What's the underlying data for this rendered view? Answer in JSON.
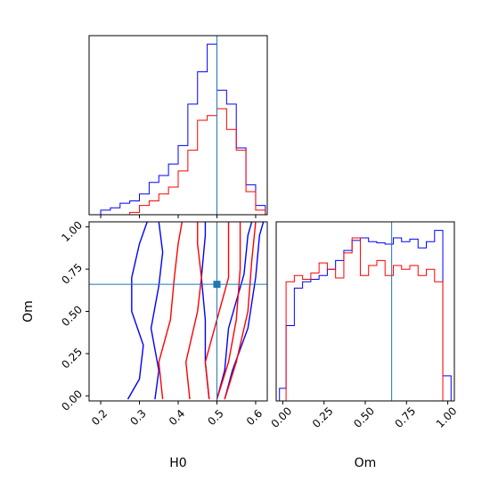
{
  "chart_data": {
    "type": "corner",
    "parameters": [
      "H0",
      "Om"
    ],
    "truth": {
      "H0": 0.5,
      "Om": 0.66
    },
    "colors": {
      "series_blue": "#0000ff",
      "series_red": "#ff0000",
      "truth": "#1f77b4"
    },
    "panels": [
      {
        "id": "hist-H0",
        "type": "histogram",
        "xlim": [
          0.17,
          0.63
        ],
        "xticks": [
          0.2,
          0.3,
          0.4,
          0.5,
          0.6
        ],
        "tick_labels_shown": false,
        "series": [
          {
            "color": "blue",
            "edges": [
              0.2,
              0.225,
              0.25,
              0.275,
              0.3,
              0.325,
              0.35,
              0.375,
              0.4,
              0.425,
              0.45,
              0.475,
              0.5,
              0.525,
              0.55,
              0.575,
              0.6,
              0.625
            ],
            "density": [
              0.2,
              0.3,
              0.5,
              0.6,
              0.9,
              1.4,
              1.7,
              2.2,
              3.0,
              4.8,
              6.2,
              7.4,
              5.4,
              4.8,
              2.9,
              1.3,
              0.4
            ]
          },
          {
            "color": "red",
            "edges": [
              0.275,
              0.3,
              0.325,
              0.35,
              0.375,
              0.4,
              0.425,
              0.45,
              0.475,
              0.5,
              0.525,
              0.55,
              0.575,
              0.6,
              0.625
            ],
            "density": [
              0.1,
              0.4,
              0.6,
              0.9,
              1.2,
              1.9,
              2.8,
              4.1,
              4.3,
              4.6,
              3.7,
              2.8,
              1.0,
              0.2
            ]
          }
        ]
      },
      {
        "id": "contour-H0-Om",
        "type": "contour2d",
        "xlim": [
          0.17,
          0.63
        ],
        "ylim": [
          -0.03,
          1.03
        ],
        "xticks": [
          0.2,
          0.3,
          0.4,
          0.5,
          0.6
        ],
        "yticks": [
          0.0,
          0.25,
          0.5,
          0.75,
          1.0
        ],
        "xtick_labels": [
          "0.2",
          "0.3",
          "0.4",
          "0.5",
          "0.6"
        ],
        "ytick_labels": [
          "0.00",
          "0.25",
          "0.50",
          "0.75",
          "1.00"
        ],
        "xlabel": "H0",
        "ylabel": "Om",
        "contours": [
          {
            "color": "blue",
            "points": [
              [
                0.27,
                -0.02
              ],
              [
                0.3,
                0.1
              ],
              [
                0.31,
                0.3
              ],
              [
                0.28,
                0.5
              ],
              [
                0.28,
                0.7
              ],
              [
                0.3,
                0.9
              ],
              [
                0.32,
                1.03
              ]
            ]
          },
          {
            "color": "blue",
            "points": [
              [
                0.34,
                -0.02
              ],
              [
                0.35,
                0.15
              ],
              [
                0.33,
                0.4
              ],
              [
                0.35,
                0.65
              ],
              [
                0.36,
                0.85
              ],
              [
                0.35,
                1.03
              ]
            ]
          },
          {
            "color": "blue",
            "points": [
              [
                0.48,
                -0.02
              ],
              [
                0.47,
                0.2
              ],
              [
                0.47,
                0.45
              ],
              [
                0.46,
                0.7
              ],
              [
                0.47,
                0.95
              ],
              [
                0.47,
                1.03
              ]
            ]
          },
          {
            "color": "blue",
            "points": [
              [
                0.5,
                -0.02
              ],
              [
                0.52,
                0.15
              ],
              [
                0.53,
                0.4
              ],
              [
                0.57,
                0.72
              ],
              [
                0.58,
                0.95
              ],
              [
                0.59,
                1.03
              ]
            ]
          },
          {
            "color": "blue",
            "points": [
              [
                0.52,
                -0.02
              ],
              [
                0.54,
                0.15
              ],
              [
                0.58,
                0.4
              ],
              [
                0.6,
                0.7
              ],
              [
                0.61,
                0.95
              ],
              [
                0.62,
                1.03
              ]
            ]
          },
          {
            "color": "red",
            "points": [
              [
                0.36,
                -0.02
              ],
              [
                0.35,
                0.2
              ],
              [
                0.38,
                0.45
              ],
              [
                0.39,
                0.7
              ],
              [
                0.4,
                0.9
              ],
              [
                0.41,
                1.03
              ]
            ]
          },
          {
            "color": "red",
            "points": [
              [
                0.43,
                -0.02
              ],
              [
                0.42,
                0.2
              ],
              [
                0.45,
                0.5
              ],
              [
                0.46,
                0.7
              ],
              [
                0.45,
                0.9
              ],
              [
                0.45,
                1.03
              ]
            ]
          },
          {
            "color": "red",
            "points": [
              [
                0.48,
                -0.02
              ],
              [
                0.47,
                0.2
              ],
              [
                0.5,
                0.45
              ],
              [
                0.53,
                0.7
              ],
              [
                0.53,
                1.03
              ]
            ]
          },
          {
            "color": "red",
            "points": [
              [
                0.5,
                -0.02
              ],
              [
                0.53,
                0.2
              ],
              [
                0.55,
                0.45
              ],
              [
                0.56,
                0.75
              ],
              [
                0.56,
                1.03
              ]
            ]
          },
          {
            "color": "red",
            "points": [
              [
                0.52,
                -0.02
              ],
              [
                0.55,
                0.2
              ],
              [
                0.58,
                0.5
              ],
              [
                0.59,
                0.8
              ],
              [
                0.6,
                1.03
              ]
            ]
          }
        ]
      },
      {
        "id": "hist-Om",
        "type": "histogram",
        "xlim": [
          -0.04,
          1.04
        ],
        "xticks": [
          0.0,
          0.25,
          0.5,
          0.75,
          1.0
        ],
        "xtick_labels": [
          "0.00",
          "0.25",
          "0.50",
          "0.75",
          "1.00"
        ],
        "xlabel": "Om",
        "series": [
          {
            "color": "blue",
            "edges": [
              -0.02,
              0.02,
              0.07,
              0.12,
              0.17,
              0.22,
              0.27,
              0.32,
              0.37,
              0.42,
              0.47,
              0.52,
              0.57,
              0.62,
              0.67,
              0.72,
              0.77,
              0.82,
              0.87,
              0.92,
              0.97,
              1.02
            ],
            "density": [
              0.1,
              0.6,
              0.9,
              0.95,
              0.97,
              1.0,
              1.05,
              1.12,
              1.2,
              1.28,
              1.3,
              1.27,
              1.26,
              1.25,
              1.3,
              1.27,
              1.29,
              1.22,
              1.27,
              1.36,
              0.2
            ]
          },
          {
            "color": "red",
            "edges": [
              0.02,
              0.07,
              0.12,
              0.17,
              0.22,
              0.27,
              0.32,
              0.37,
              0.42,
              0.47,
              0.52,
              0.57,
              0.62,
              0.67,
              0.72,
              0.77,
              0.82,
              0.87,
              0.92,
              0.97
            ],
            "density": [
              0.95,
              1.0,
              0.97,
              1.02,
              1.1,
              1.05,
              0.98,
              1.18,
              1.3,
              1.0,
              1.08,
              1.12,
              1.0,
              1.08,
              1.05,
              1.08,
              1.0,
              1.05,
              0.95
            ]
          }
        ]
      }
    ]
  }
}
